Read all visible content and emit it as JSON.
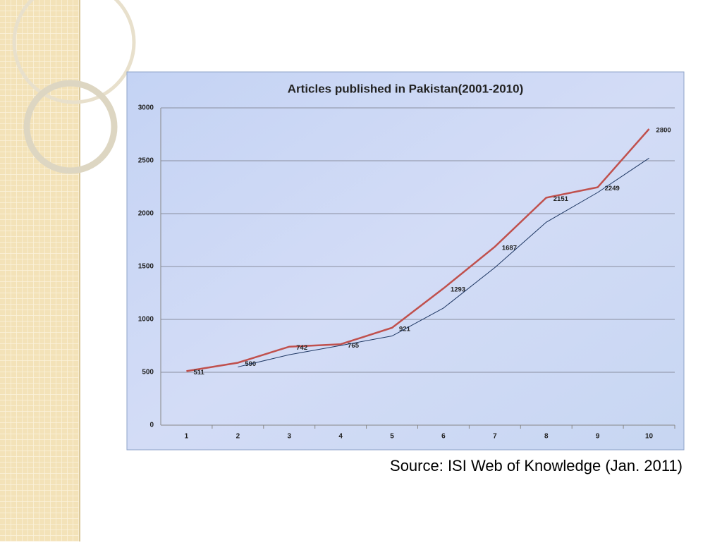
{
  "chart_data": {
    "type": "line",
    "title": "Articles published in Pakistan(2001-2010)",
    "categories": [
      "1",
      "2",
      "3",
      "4",
      "5",
      "6",
      "7",
      "8",
      "9",
      "10"
    ],
    "series": [
      {
        "color": "#c0504d",
        "values": [
          511,
          590,
          742,
          765,
          921,
          1293,
          1687,
          2151,
          2249,
          2800
        ],
        "labels": true,
        "width": 2.5
      },
      {
        "color": "#1f3864",
        "values": [
          null,
          550.5,
          666,
          753.5,
          843,
          1107,
          1490,
          1919,
          2200,
          2524.5
        ],
        "labels": false,
        "width": 1
      }
    ],
    "ylim": [
      0,
      3000
    ],
    "yticks": [
      0,
      500,
      1000,
      1500,
      2000,
      2500,
      3000
    ],
    "grid": true
  },
  "source": "Source: ISI Web of Knowledge (Jan. 2011)"
}
